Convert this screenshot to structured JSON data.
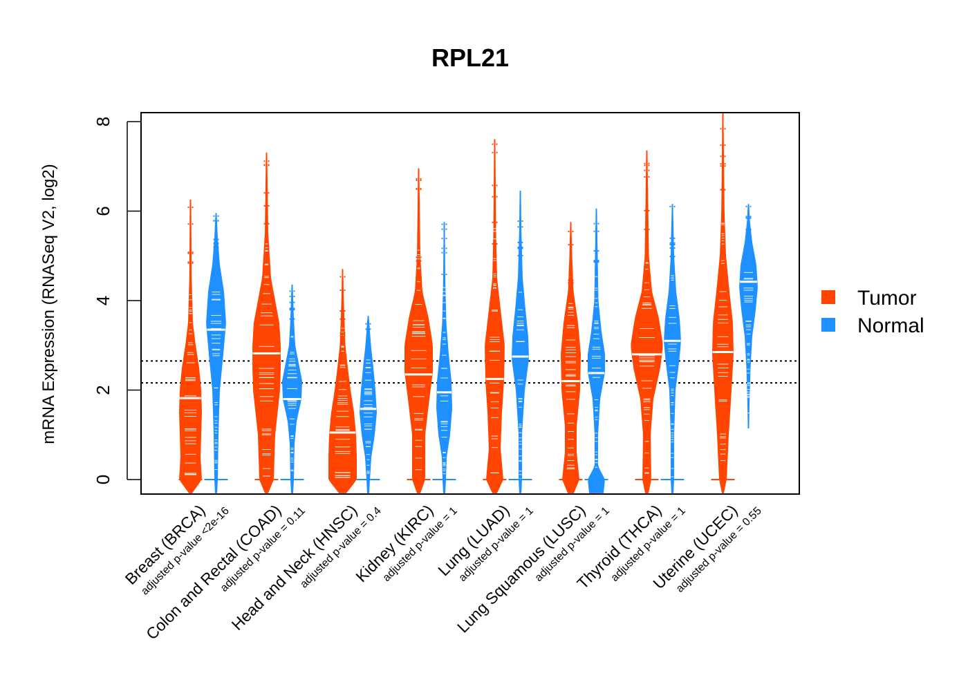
{
  "chart_data": {
    "type": "violin",
    "title": "RPL21",
    "xlabel": "",
    "ylabel": "mRNA Expression (RNASeq V2, log2)",
    "ylim": [
      -0.32,
      8.2
    ],
    "yticks": [
      "0",
      "2",
      "4",
      "6",
      "8"
    ],
    "grid": false,
    "legend_position": "right",
    "reference_lines": [
      2.16,
      2.65
    ],
    "categories": [
      {
        "name": "Breast (BRCA)",
        "pvalue": "adjusted p-value <2e-16"
      },
      {
        "name": "Colon and Rectal (COAD)",
        "pvalue": "adjusted p-value = 0.11"
      },
      {
        "name": "Head and Neck (HNSC)",
        "pvalue": "adjusted p-value = 0.4"
      },
      {
        "name": "Kidney (KIRC)",
        "pvalue": "adjusted p-value = 1"
      },
      {
        "name": "Lung (LUAD)",
        "pvalue": "adjusted p-value = 1"
      },
      {
        "name": "Lung Squamous (LUSC)",
        "pvalue": "adjusted p-value = 1"
      },
      {
        "name": "Thyroid (THCA)",
        "pvalue": "adjusted p-value = 1"
      },
      {
        "name": "Uterine (UCEC)",
        "pvalue": "adjusted p-value = 0.55"
      }
    ],
    "series": [
      {
        "name": "Tumor",
        "color": "#FF4500",
        "violins": [
          {
            "min": -0.3,
            "max": 6.25,
            "median": 1.82,
            "shape": [
              [
                -0.3,
                0.02
              ],
              [
                0,
                0.16
              ],
              [
                0.5,
                0.14
              ],
              [
                1.0,
                0.15
              ],
              [
                1.5,
                0.16
              ],
              [
                2.0,
                0.15
              ],
              [
                2.5,
                0.12
              ],
              [
                3.0,
                0.07
              ],
              [
                3.5,
                0.03
              ],
              [
                4.5,
                0.012
              ],
              [
                6.25,
                0.005
              ]
            ]
          },
          {
            "min": -0.3,
            "max": 7.3,
            "median": 2.82,
            "shape": [
              [
                -0.3,
                0.02
              ],
              [
                0,
                0.1
              ],
              [
                1.0,
                0.12
              ],
              [
                2.0,
                0.19
              ],
              [
                2.5,
                0.2
              ],
              [
                3.0,
                0.2
              ],
              [
                3.5,
                0.18
              ],
              [
                4.0,
                0.12
              ],
              [
                4.5,
                0.06
              ],
              [
                5.5,
                0.02
              ],
              [
                7.3,
                0.004
              ]
            ]
          },
          {
            "min": -0.3,
            "max": 4.7,
            "median": 1.05,
            "shape": [
              [
                -0.3,
                0.05
              ],
              [
                0,
                0.2
              ],
              [
                0.5,
                0.2
              ],
              [
                1.0,
                0.19
              ],
              [
                1.5,
                0.16
              ],
              [
                2.0,
                0.11
              ],
              [
                2.5,
                0.07
              ],
              [
                3.0,
                0.035
              ],
              [
                4.0,
                0.012
              ],
              [
                4.7,
                0.004
              ]
            ]
          },
          {
            "min": -0.3,
            "max": 6.95,
            "median": 2.35,
            "shape": [
              [
                -0.3,
                0.02
              ],
              [
                0,
                0.09
              ],
              [
                1.0,
                0.09
              ],
              [
                1.8,
                0.15
              ],
              [
                2.4,
                0.2
              ],
              [
                3.0,
                0.2
              ],
              [
                3.6,
                0.14
              ],
              [
                4.2,
                0.05
              ],
              [
                5.0,
                0.02
              ],
              [
                6.95,
                0.004
              ]
            ]
          },
          {
            "min": -0.3,
            "max": 7.6,
            "median": 2.25,
            "shape": [
              [
                -0.3,
                0.03
              ],
              [
                0,
                0.12
              ],
              [
                0.7,
                0.08
              ],
              [
                1.5,
                0.1
              ],
              [
                2.2,
                0.13
              ],
              [
                3.0,
                0.14
              ],
              [
                3.8,
                0.08
              ],
              [
                4.5,
                0.03
              ],
              [
                5.5,
                0.015
              ],
              [
                7.6,
                0.004
              ]
            ]
          },
          {
            "min": -0.3,
            "max": 5.75,
            "median": 2.2,
            "shape": [
              [
                -0.3,
                0.04
              ],
              [
                0,
                0.12
              ],
              [
                0.6,
                0.08
              ],
              [
                1.2,
                0.08
              ],
              [
                2.0,
                0.13
              ],
              [
                2.8,
                0.14
              ],
              [
                3.5,
                0.1
              ],
              [
                4.2,
                0.035
              ],
              [
                5.0,
                0.015
              ],
              [
                5.75,
                0.004
              ]
            ]
          },
          {
            "min": -0.3,
            "max": 7.35,
            "median": 2.8,
            "shape": [
              [
                -0.3,
                0.02
              ],
              [
                0,
                0.06
              ],
              [
                1.0,
                0.05
              ],
              [
                1.8,
                0.09
              ],
              [
                2.5,
                0.19
              ],
              [
                3.0,
                0.23
              ],
              [
                3.6,
                0.17
              ],
              [
                4.2,
                0.07
              ],
              [
                5.0,
                0.025
              ],
              [
                7.35,
                0.004
              ]
            ]
          },
          {
            "min": -0.3,
            "max": 8.2,
            "median": 2.85,
            "shape": [
              [
                -0.3,
                0.01
              ],
              [
                0,
                0.05
              ],
              [
                1.0,
                0.08
              ],
              [
                2.0,
                0.12
              ],
              [
                2.8,
                0.15
              ],
              [
                3.5,
                0.14
              ],
              [
                4.2,
                0.09
              ],
              [
                5.0,
                0.04
              ],
              [
                6.0,
                0.018
              ],
              [
                8.2,
                0.004
              ]
            ]
          }
        ]
      },
      {
        "name": "Normal",
        "color": "#1E90FF",
        "violins": [
          {
            "min": -0.3,
            "max": 5.95,
            "median": 3.35,
            "shape": [
              [
                -0.3,
                0.01
              ],
              [
                0,
                0.02
              ],
              [
                1.0,
                0.03
              ],
              [
                2.0,
                0.05
              ],
              [
                2.8,
                0.1
              ],
              [
                3.5,
                0.14
              ],
              [
                4.2,
                0.11
              ],
              [
                4.8,
                0.05
              ],
              [
                5.4,
                0.02
              ],
              [
                5.95,
                0.004
              ]
            ]
          },
          {
            "min": -0.3,
            "max": 4.35,
            "median": 1.8,
            "shape": [
              [
                -0.3,
                0.01
              ],
              [
                0,
                0.02
              ],
              [
                0.8,
                0.03
              ],
              [
                1.3,
                0.06
              ],
              [
                1.8,
                0.13
              ],
              [
                2.2,
                0.14
              ],
              [
                2.6,
                0.09
              ],
              [
                3.0,
                0.04
              ],
              [
                3.6,
                0.02
              ],
              [
                4.35,
                0.004
              ]
            ]
          },
          {
            "min": -0.3,
            "max": 3.65,
            "median": 1.58,
            "shape": [
              [
                -0.3,
                0.01
              ],
              [
                0,
                0.02
              ],
              [
                0.5,
                0.04
              ],
              [
                1.0,
                0.09
              ],
              [
                1.5,
                0.12
              ],
              [
                2.0,
                0.1
              ],
              [
                2.5,
                0.07
              ],
              [
                3.0,
                0.035
              ],
              [
                3.65,
                0.004
              ]
            ]
          },
          {
            "min": -0.3,
            "max": 5.75,
            "median": 1.95,
            "shape": [
              [
                -0.3,
                0.01
              ],
              [
                0,
                0.02
              ],
              [
                0.5,
                0.03
              ],
              [
                1.0,
                0.08
              ],
              [
                1.6,
                0.11
              ],
              [
                2.2,
                0.1
              ],
              [
                2.8,
                0.06
              ],
              [
                3.5,
                0.025
              ],
              [
                4.5,
                0.01
              ],
              [
                5.75,
                0.004
              ]
            ]
          },
          {
            "min": -0.3,
            "max": 6.45,
            "median": 2.75,
            "shape": [
              [
                -0.3,
                0.01
              ],
              [
                0,
                0.02
              ],
              [
                1.0,
                0.02
              ],
              [
                2.0,
                0.06
              ],
              [
                2.7,
                0.12
              ],
              [
                3.2,
                0.11
              ],
              [
                3.8,
                0.07
              ],
              [
                4.5,
                0.03
              ],
              [
                5.5,
                0.012
              ],
              [
                6.45,
                0.004
              ]
            ]
          },
          {
            "min": -0.3,
            "max": 6.05,
            "median": 2.38,
            "shape": [
              [
                -0.3,
                0.1
              ],
              [
                0,
                0.12
              ],
              [
                0.3,
                0.02
              ],
              [
                1.0,
                0.02
              ],
              [
                1.8,
                0.05
              ],
              [
                2.4,
                0.12
              ],
              [
                2.8,
                0.12
              ],
              [
                3.3,
                0.07
              ],
              [
                4.0,
                0.025
              ],
              [
                6.05,
                0.004
              ]
            ]
          },
          {
            "min": -0.3,
            "max": 6.15,
            "median": 3.1,
            "shape": [
              [
                -0.3,
                0.01
              ],
              [
                0,
                0.02
              ],
              [
                1.0,
                0.02
              ],
              [
                2.0,
                0.04
              ],
              [
                2.6,
                0.09
              ],
              [
                3.1,
                0.12
              ],
              [
                3.6,
                0.1
              ],
              [
                4.2,
                0.05
              ],
              [
                5.0,
                0.02
              ],
              [
                6.15,
                0.004
              ]
            ]
          },
          {
            "min": 1.15,
            "max": 6.15,
            "median": 4.42,
            "shape": [
              [
                1.15,
                0.004
              ],
              [
                1.8,
                0.012
              ],
              [
                2.5,
                0.025
              ],
              [
                3.2,
                0.05
              ],
              [
                3.8,
                0.1
              ],
              [
                4.3,
                0.13
              ],
              [
                4.8,
                0.11
              ],
              [
                5.3,
                0.05
              ],
              [
                5.8,
                0.015
              ],
              [
                6.15,
                0.004
              ]
            ]
          }
        ]
      }
    ]
  }
}
